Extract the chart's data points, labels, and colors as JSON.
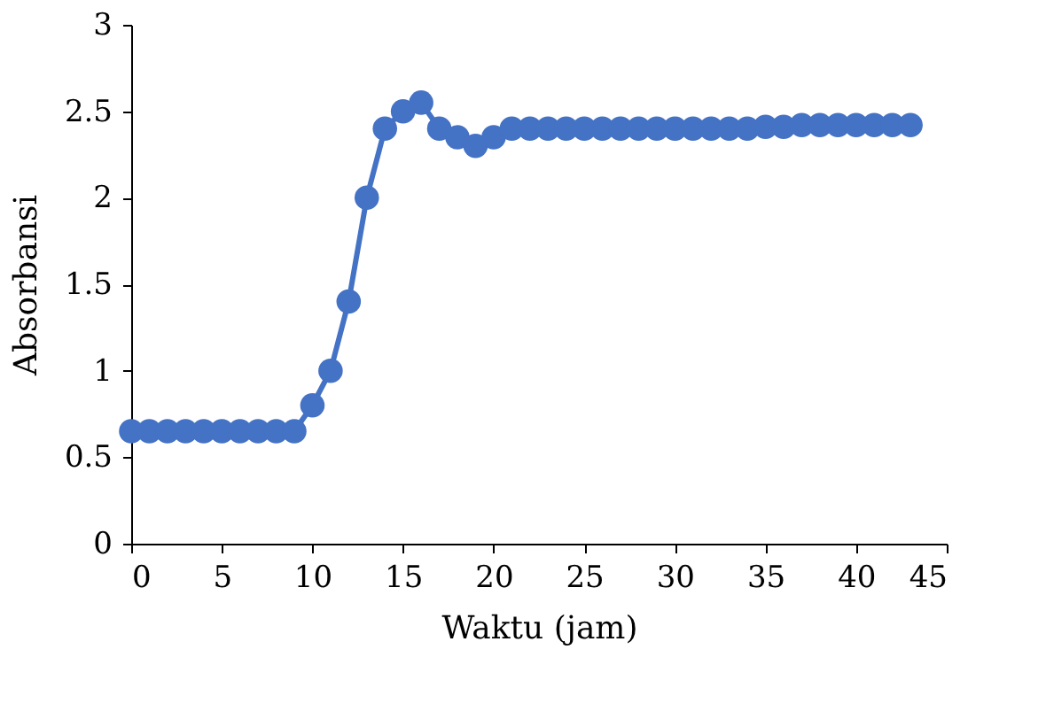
{
  "chart_data": {
    "type": "line",
    "xlabel": "Waktu (jam)",
    "ylabel": "Absorbansi",
    "x": [
      0,
      1,
      2,
      3,
      4,
      5,
      6,
      7,
      8,
      9,
      10,
      11,
      12,
      13,
      14,
      15,
      16,
      17,
      18,
      19,
      20,
      21,
      22,
      23,
      24,
      25,
      26,
      27,
      28,
      29,
      30,
      31,
      32,
      33,
      34,
      35,
      36,
      37,
      38,
      39,
      40,
      41,
      42,
      43
    ],
    "series": [
      {
        "color": "#4472c4",
        "values": [
          0.65,
          0.65,
          0.65,
          0.65,
          0.65,
          0.65,
          0.65,
          0.65,
          0.65,
          0.65,
          0.8,
          1.0,
          1.4,
          2.0,
          2.4,
          2.5,
          2.55,
          2.4,
          2.35,
          2.3,
          2.35,
          2.4,
          2.4,
          2.4,
          2.4,
          2.4,
          2.4,
          2.4,
          2.4,
          2.4,
          2.4,
          2.4,
          2.4,
          2.4,
          2.4,
          2.41,
          2.41,
          2.42,
          2.42,
          2.42,
          2.42,
          2.42,
          2.42,
          2.42
        ]
      }
    ],
    "xlim": [
      0,
      45
    ],
    "xticks": [
      0,
      5,
      10,
      15,
      20,
      25,
      30,
      35,
      40,
      45
    ],
    "ylim": [
      0,
      3
    ],
    "yticks": [
      0,
      0.5,
      1,
      1.5,
      2,
      2.5,
      3
    ],
    "grid": false,
    "marker": "circle",
    "line_style": "solid"
  }
}
